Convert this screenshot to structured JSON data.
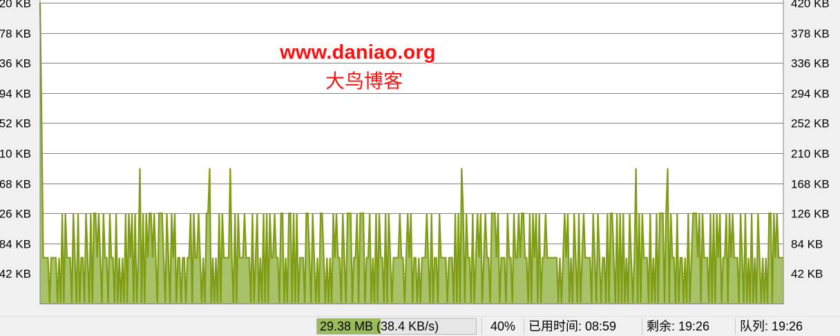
{
  "chart_data": {
    "type": "area",
    "yticks_left": [
      "20 KB",
      "78 KB",
      "36 KB",
      "94 KB",
      "52 KB",
      "10 KB",
      "68 KB",
      "26 KB",
      "84 KB",
      "42 KB"
    ],
    "yticks_right": [
      "420 KB",
      "378 KB",
      "336 KB",
      "294 KB",
      "252 KB",
      "210 KB",
      "168 KB",
      "126 KB",
      "84 KB",
      "42 KB"
    ],
    "ylim": [
      0,
      420
    ],
    "grid": true,
    "series_color": "#7f9c14",
    "fill_color": "#a8c26a",
    "baseline_kb": 1,
    "typical_kb": 64,
    "step_kb": 126,
    "high_kb": 189,
    "first_kb": 420,
    "second_kb": 252,
    "high_indices": [
      63,
      107,
      120,
      266,
      376,
      396
    ],
    "num_points": 470
  },
  "watermark": {
    "url": "www.daniao.org",
    "name": "大鸟博客"
  },
  "status": {
    "transfer": "29.38 MB (38.4 KB/s)",
    "progress_fraction": 0.4,
    "percent": "40%",
    "elapsed": "已用时间: 08:59",
    "remaining": "剩余: 19:26",
    "queue": "队列: 19:26"
  }
}
